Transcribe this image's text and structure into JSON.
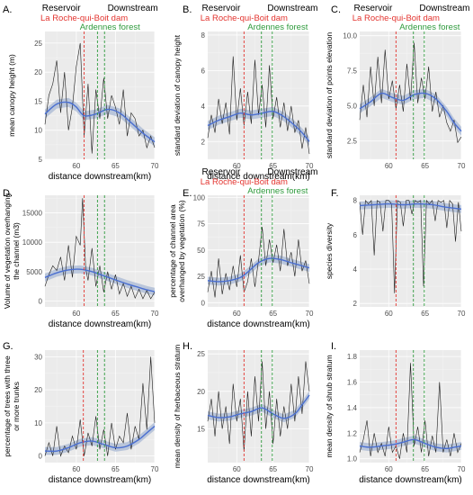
{
  "figure": {
    "region_labels": [
      "Reservoir",
      "Downstream"
    ],
    "dam_label": "La Roche-qui-Boit dam",
    "forest_label": "Ardennes forest",
    "colors": {
      "dam": "#e3342f",
      "forest": "#2e9a3c",
      "smooth": "#4a6fd1",
      "band": "#8fa6cc",
      "series": "#1a1a1a",
      "panel_bg": "#ebebeb"
    }
  },
  "chart_data": [
    {
      "type": "line",
      "letter": "A.",
      "has_header": true,
      "has_xlabel": true,
      "xlabel": "distance downstream(km)",
      "ylabel": [
        "mean canopy height (m)"
      ],
      "xlim": [
        56,
        70
      ],
      "ylim": [
        5,
        27
      ],
      "xticks": [
        60,
        65,
        70
      ],
      "yticks": [
        5,
        10,
        15,
        20,
        25
      ],
      "vlines": {
        "dam": 61,
        "forest": [
          62.7,
          63.6
        ]
      },
      "smooth": {
        "x": [
          56,
          57.5,
          59,
          60,
          61,
          62.5,
          64,
          65.5,
          67,
          68.5,
          70
        ],
        "y": [
          12.8,
          14.5,
          14.8,
          14,
          12.5,
          12.8,
          13.6,
          13,
          11.3,
          9.5,
          8
        ]
      },
      "series": {
        "x": [
          56,
          56.5,
          57,
          57.5,
          58,
          58.5,
          59,
          59.5,
          60,
          60.5,
          61,
          61.5,
          62,
          62.5,
          63,
          63.5,
          64,
          64.5,
          65,
          65.5,
          66,
          66.5,
          67,
          67.5,
          68,
          68.5,
          69,
          69.5,
          70
        ],
        "y": [
          11,
          16,
          18,
          22,
          13,
          20,
          10,
          14,
          21,
          25,
          9,
          18,
          6,
          17,
          12,
          19,
          12,
          16,
          14,
          11,
          17,
          9,
          13,
          12,
          9,
          10,
          7,
          9,
          7
        ]
      }
    },
    {
      "type": "line",
      "letter": "B.",
      "has_header": true,
      "has_xlabel": true,
      "xlabel": "distance downstream(km)",
      "ylabel": [
        "standard deviation of canopy height"
      ],
      "xlim": [
        56,
        70
      ],
      "ylim": [
        1,
        8.2
      ],
      "xticks": [
        60,
        65,
        70
      ],
      "yticks": [
        2,
        4,
        6,
        8
      ],
      "vlines": {
        "dam": 61,
        "forest": [
          63.4,
          64.9
        ]
      },
      "smooth": {
        "x": [
          56,
          57.5,
          59,
          60.5,
          62,
          63.5,
          65,
          66.5,
          68,
          69,
          70
        ],
        "y": [
          2.9,
          3.2,
          3.4,
          3.6,
          3.5,
          3.6,
          3.7,
          3.4,
          2.9,
          2.5,
          2.0
        ]
      },
      "series": {
        "x": [
          56,
          56.5,
          57,
          57.5,
          58,
          58.5,
          59,
          59.5,
          60,
          60.5,
          61,
          61.5,
          62,
          62.5,
          63,
          63.5,
          64,
          64.5,
          65,
          65.5,
          66,
          66.5,
          67,
          67.5,
          68,
          68.5,
          69,
          69.5,
          70
        ],
        "y": [
          2.2,
          3.5,
          2.5,
          4.4,
          3,
          4.2,
          2.4,
          6.8,
          3.2,
          5,
          2.9,
          4.8,
          3,
          6.6,
          3.5,
          5.2,
          2.8,
          6.3,
          3.3,
          4.5,
          2.8,
          4.2,
          2.6,
          4,
          2.5,
          3.2,
          1.6,
          2.8,
          1.3
        ]
      }
    },
    {
      "type": "line",
      "letter": "C.",
      "has_header": true,
      "has_xlabel": false,
      "xlabel": "",
      "ylabel": [
        "standard deviation of points elevation"
      ],
      "xlim": [
        56,
        70
      ],
      "ylim": [
        1.2,
        10.3
      ],
      "xticks": [
        60,
        65,
        70
      ],
      "yticks": [
        2.5,
        5.0,
        7.5,
        10.0
      ],
      "ytick_decimals": 1,
      "vlines": {
        "dam": 61,
        "forest": [
          63.4,
          64.9
        ]
      },
      "smooth": {
        "x": [
          56,
          57.5,
          59,
          60.5,
          62,
          63.5,
          65,
          66.5,
          68,
          69,
          70
        ],
        "y": [
          4.8,
          5.3,
          5.9,
          5.6,
          5.4,
          5.8,
          5.9,
          5.5,
          4.6,
          3.8,
          3.2
        ]
      },
      "series": {
        "x": [
          56,
          56.5,
          57,
          57.5,
          58,
          58.5,
          59,
          59.5,
          60,
          60.5,
          61,
          61.5,
          62,
          62.5,
          63,
          63.5,
          64,
          64.5,
          65,
          65.5,
          66,
          66.5,
          67,
          67.5,
          68,
          68.5,
          69,
          69.5,
          70
        ],
        "y": [
          4,
          6.5,
          4.2,
          7.8,
          5,
          8.5,
          5.2,
          9,
          5.5,
          6.8,
          4.8,
          6.5,
          4.6,
          8,
          5.4,
          9.5,
          5.2,
          7,
          5.5,
          7.8,
          4.6,
          6,
          4.2,
          5,
          3.8,
          3.2,
          4,
          2.4,
          2.8
        ]
      }
    },
    {
      "type": "line",
      "letter": "D.",
      "has_header": false,
      "has_xlabel": true,
      "xlabel": "distance downstream(km)",
      "ylabel": [
        "Volume of vegetation overhanging",
        "the channel (m3)"
      ],
      "xlim": [
        56,
        70
      ],
      "ylim": [
        -1000,
        18000
      ],
      "xticks": [
        60,
        65,
        70
      ],
      "yticks": [
        0,
        5000,
        10000,
        15000
      ],
      "vlines": {
        "dam": 61,
        "forest": [
          62.7,
          63.6
        ]
      },
      "smooth": {
        "x": [
          56,
          57.5,
          59,
          60.5,
          62,
          63.5,
          65,
          66.5,
          68,
          69,
          70
        ],
        "y": [
          4000,
          4800,
          5300,
          5400,
          5000,
          4300,
          3600,
          2900,
          2300,
          1900,
          1600
        ]
      },
      "series": {
        "x": [
          56,
          56.5,
          57,
          57.5,
          58,
          58.5,
          59,
          59.5,
          60,
          60.5,
          60.8,
          61.2,
          61.5,
          62,
          62.5,
          63,
          63.5,
          64,
          64.5,
          65,
          65.5,
          66,
          66.5,
          67,
          67.5,
          68,
          68.5,
          69,
          69.5,
          70
        ],
        "y": [
          2500,
          4500,
          6000,
          5200,
          7500,
          3500,
          9500,
          4000,
          11000,
          9500,
          17500,
          5500,
          3500,
          9000,
          2500,
          6000,
          1500,
          5000,
          2000,
          4500,
          1200,
          3000,
          800,
          2500,
          500,
          2000,
          400,
          1800,
          400,
          1500
        ]
      }
    },
    {
      "type": "line",
      "letter": "E.",
      "has_header": true,
      "has_xlabel": true,
      "xlabel": "distance downstream(km)",
      "ylabel": [
        "percentage of channel area",
        "overhanged by vegetation (%)"
      ],
      "xlim": [
        56,
        70
      ],
      "ylim": [
        -4,
        102
      ],
      "xticks": [
        60,
        65,
        70
      ],
      "yticks": [
        0,
        25,
        50,
        75,
        100
      ],
      "vlines": {
        "dam": 61,
        "forest": [
          63.4,
          64.9
        ]
      },
      "smooth": {
        "x": [
          56,
          57.5,
          59,
          60.5,
          61.5,
          63,
          64.5,
          66,
          67.5,
          69,
          70
        ],
        "y": [
          21,
          20,
          21,
          24,
          29,
          38,
          42,
          41,
          38,
          35,
          33
        ]
      },
      "series": {
        "x": [
          56,
          56.5,
          57,
          57.5,
          58,
          58.5,
          59,
          59.5,
          60,
          60.5,
          61,
          61.5,
          62,
          62.5,
          63,
          63.5,
          64,
          64.5,
          65,
          65.5,
          66,
          66.5,
          67,
          67.5,
          68,
          68.5,
          69,
          69.5,
          70
        ],
        "y": [
          10,
          30,
          5,
          42,
          8,
          28,
          12,
          35,
          15,
          45,
          10,
          20,
          42,
          15,
          40,
          72,
          35,
          60,
          38,
          55,
          30,
          70,
          35,
          48,
          25,
          60,
          30,
          40,
          18
        ]
      }
    },
    {
      "type": "line",
      "letter": "F.",
      "has_header": false,
      "has_xlabel": false,
      "xlabel": "",
      "ylabel": [
        "species diversity"
      ],
      "xlim": [
        56,
        70
      ],
      "ylim": [
        1.8,
        8.3
      ],
      "xticks": [
        60,
        65,
        70
      ],
      "yticks": [
        2,
        4,
        6,
        8
      ],
      "vlines": {
        "dam": 61,
        "forest": [
          63.4,
          64.9
        ]
      },
      "smooth": {
        "x": [
          56,
          58,
          60,
          62,
          64,
          66,
          68,
          70
        ],
        "y": [
          7.7,
          7.75,
          7.8,
          7.75,
          7.8,
          7.75,
          7.6,
          7.5
        ]
      },
      "series": {
        "x": [
          56,
          56.4,
          56.8,
          57.2,
          57.6,
          58,
          58.4,
          58.8,
          59.2,
          59.6,
          60,
          60.4,
          60.8,
          61.2,
          61.6,
          62,
          62.4,
          62.8,
          63.2,
          63.6,
          64,
          64.4,
          64.8,
          65.2,
          65.6,
          66,
          66.4,
          66.8,
          67.2,
          67.6,
          68,
          68.4,
          68.8,
          69.2,
          69.6,
          70
        ],
        "y": [
          7.9,
          6,
          8,
          7.8,
          8,
          4.8,
          8,
          7.9,
          6.2,
          8,
          8,
          7.8,
          2.6,
          8,
          7.9,
          6.5,
          8,
          8,
          7.2,
          8,
          7.9,
          8,
          3,
          8,
          7.8,
          8,
          6.8,
          8,
          7.9,
          8,
          6.4,
          8,
          7.8,
          5.6,
          7.9,
          6.2
        ]
      }
    },
    {
      "type": "line",
      "letter": "G.",
      "has_header": false,
      "has_xlabel": true,
      "xlabel": "distance downstream(km)",
      "ylabel": [
        "percentage of trees with three",
        "or more trunks"
      ],
      "xlim": [
        56,
        70
      ],
      "ylim": [
        -2,
        32
      ],
      "xticks": [
        60,
        65,
        70
      ],
      "yticks": [
        0,
        10,
        20,
        30
      ],
      "vlines": {
        "dam": 60.9,
        "forest": [
          62.7,
          63.6
        ]
      },
      "smooth": {
        "x": [
          56,
          57.5,
          59,
          60.5,
          62,
          63.5,
          65,
          66.5,
          68,
          69,
          70
        ],
        "y": [
          1.5,
          1.5,
          2.5,
          4,
          4.5,
          3.5,
          2.5,
          3,
          5,
          7,
          9
        ]
      },
      "series": {
        "x": [
          56,
          56.5,
          57,
          57.5,
          58,
          58.5,
          59,
          59.5,
          60,
          60.5,
          61,
          61.5,
          62,
          62.5,
          63,
          63.5,
          64,
          64.5,
          65,
          65.5,
          66,
          66.5,
          67,
          67.5,
          68,
          68.5,
          69,
          69.5,
          70
        ],
        "y": [
          0,
          4,
          0,
          9,
          0,
          3,
          1,
          6,
          2,
          11,
          0,
          7,
          3,
          12,
          2,
          8,
          0,
          10,
          2,
          6,
          4,
          13,
          2,
          9,
          5,
          22,
          8,
          30,
          10
        ]
      }
    },
    {
      "type": "line",
      "letter": "H.",
      "has_header": false,
      "has_xlabel": true,
      "xlabel": "distance downstream(km)",
      "ylabel": [
        "mean density of herbaceous stratum"
      ],
      "xlim": [
        56,
        70
      ],
      "ylim": [
        10.5,
        25.5
      ],
      "xticks": [
        60,
        65,
        70
      ],
      "yticks": [
        15,
        20,
        25
      ],
      "vlines": {
        "dam": 61,
        "forest": [
          63.4,
          64.9
        ]
      },
      "smooth": {
        "x": [
          56,
          57.5,
          59,
          60.5,
          62,
          63.5,
          65,
          66.5,
          68,
          69,
          70
        ],
        "y": [
          16.8,
          16.5,
          16.6,
          17,
          17.3,
          17.8,
          17,
          16.4,
          17,
          18.2,
          19.5
        ]
      },
      "series": {
        "x": [
          56,
          56.5,
          57,
          57.5,
          58,
          58.5,
          59,
          59.5,
          60,
          60.5,
          61,
          61.5,
          62,
          62.5,
          63,
          63.5,
          64,
          64.5,
          65,
          65.5,
          66,
          66.5,
          67,
          67.5,
          68,
          68.5,
          69,
          69.5,
          70
        ],
        "y": [
          16,
          19,
          14,
          20,
          15,
          18,
          13,
          21,
          16,
          19,
          12,
          20,
          14,
          22,
          16,
          24,
          15,
          20,
          13,
          19,
          14,
          18,
          15,
          21,
          16,
          22,
          17,
          24,
          20
        ]
      }
    },
    {
      "type": "line",
      "letter": "I.",
      "has_header": false,
      "has_xlabel": true,
      "xlabel": "distance downstream(km)",
      "ylabel": [
        "mean density of shrub stratum"
      ],
      "xlim": [
        56,
        70
      ],
      "ylim": [
        0.97,
        1.85
      ],
      "xticks": [
        60,
        65,
        70
      ],
      "yticks": [
        1.0,
        1.2,
        1.4,
        1.6,
        1.8
      ],
      "ytick_decimals": 1,
      "vlines": {
        "dam": 61,
        "forest": [
          63.4,
          64.9
        ]
      },
      "smooth": {
        "x": [
          56,
          57.5,
          59,
          60.5,
          62,
          63.5,
          65,
          66.5,
          68,
          69,
          70
        ],
        "y": [
          1.1,
          1.09,
          1.1,
          1.11,
          1.13,
          1.15,
          1.12,
          1.09,
          1.08,
          1.09,
          1.1
        ]
      },
      "series": {
        "x": [
          56,
          56.5,
          57,
          57.5,
          58,
          58.5,
          59,
          59.5,
          60,
          60.5,
          61,
          61.5,
          62,
          62.5,
          63,
          63.5,
          64,
          64.5,
          65,
          65.5,
          66,
          66.5,
          67,
          67.5,
          68,
          68.5,
          69,
          69.5,
          70
        ],
        "y": [
          1.05,
          1.15,
          1.3,
          1.02,
          1.2,
          1.05,
          1.12,
          1.02,
          1.25,
          1.05,
          1.1,
          1.0,
          1.2,
          1.05,
          1.75,
          1.1,
          1.25,
          1.05,
          1.3,
          1.02,
          1.18,
          1.05,
          1.6,
          1.05,
          1.15,
          1.02,
          1.2,
          1.05,
          1.12
        ]
      }
    }
  ]
}
